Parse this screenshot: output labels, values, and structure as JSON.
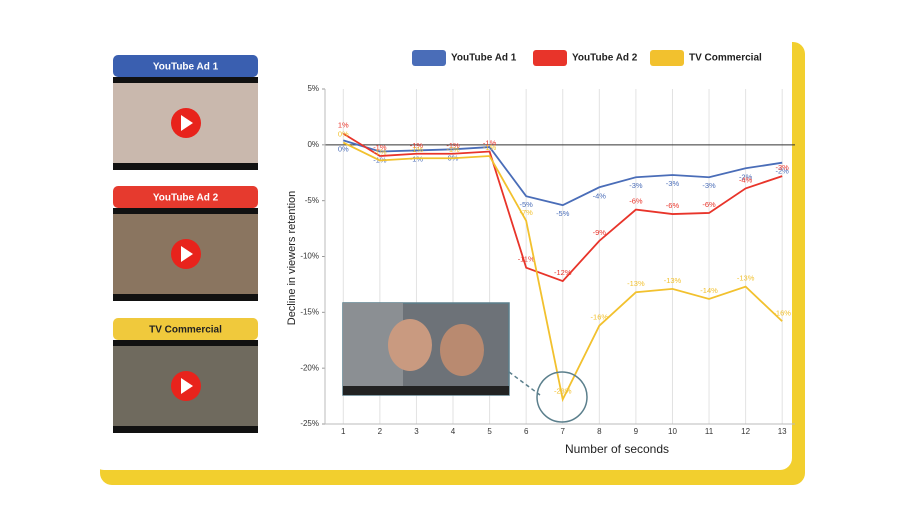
{
  "thumbnails": [
    {
      "title": "YouTube Ad 1",
      "color": "#3a5fb0"
    },
    {
      "title": "YouTube Ad 2",
      "color": "#e63a2e"
    },
    {
      "title": "TV Commercial",
      "color": "#f0c93c"
    }
  ],
  "chart_data": {
    "type": "line",
    "x_label": "Number of seconds",
    "y_label": "Decline in viewers retention",
    "x": [
      1,
      2,
      3,
      4,
      5,
      6,
      7,
      8,
      9,
      10,
      11,
      12,
      13
    ],
    "xlim": [
      0.5,
      13.35
    ],
    "xticks": [
      1,
      2,
      3,
      4,
      5,
      6,
      7,
      8,
      9,
      10,
      11,
      12,
      13
    ],
    "ylim": [
      -25,
      5
    ],
    "yticks": [
      {
        "value": -25,
        "label": "-25%"
      },
      {
        "value": -20,
        "label": "-20%"
      },
      {
        "value": -15,
        "label": "-15%"
      },
      {
        "value": -10,
        "label": "-10%"
      },
      {
        "value": -5,
        "label": "-5%"
      },
      {
        "value": 0,
        "label": "0%"
      },
      {
        "value": 5,
        "label": "5%"
      }
    ],
    "grid": true,
    "series": [
      {
        "name": "YouTube Ad 1",
        "color": "#4a6db8",
        "values": [
          0.4,
          -0.6,
          -0.5,
          -0.4,
          -0.2,
          -4.6,
          -5.4,
          -3.8,
          -2.9,
          -2.7,
          -2.9,
          -2.1,
          -1.6
        ],
        "value_labels": [
          "0%",
          "-1%",
          "-1%",
          "0%",
          null,
          "-5%",
          "-5%",
          "-4%",
          "-3%",
          "-3%",
          "-3%",
          "-2%",
          "-2%"
        ]
      },
      {
        "name": "YouTube Ad 2",
        "color": "#e8342a",
        "values": [
          1.0,
          -1.0,
          -0.8,
          -0.8,
          -0.6,
          -11.0,
          -12.2,
          -8.6,
          -5.8,
          -6.2,
          -6.1,
          -3.9,
          -2.8
        ],
        "value_labels": [
          "1%",
          "-1%",
          "-1%",
          "-1%",
          "-1%",
          "-11%",
          "-12%",
          "-9%",
          "-6%",
          "-6%",
          "-6%",
          "-4%",
          "-3%"
        ]
      },
      {
        "name": "TV Commercial",
        "color": "#f2c12e",
        "values": [
          0.2,
          -1.4,
          -1.2,
          -1.2,
          -1.0,
          -6.8,
          -22.8,
          -16.2,
          -13.2,
          -12.9,
          -13.8,
          -12.7,
          -15.8
        ],
        "value_labels": [
          "0%",
          "-1%",
          "-1%",
          "-1%",
          "-1%",
          "-7%",
          "-23%",
          "-16%",
          "-13%",
          "-13%",
          "-14%",
          "-13%",
          "-16%"
        ]
      }
    ]
  }
}
